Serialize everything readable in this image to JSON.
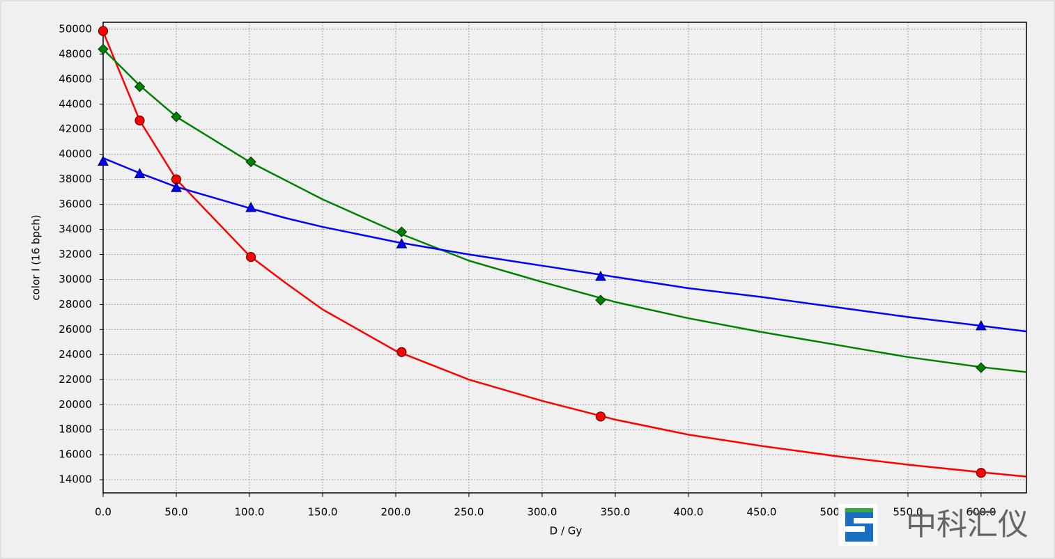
{
  "chart_data": {
    "type": "scatter",
    "x_label": "D / Gy",
    "y_label": "color I (16 bpch)",
    "xlim": [
      0,
      631
    ],
    "ylim": [
      12950,
      50550
    ],
    "xticks": [
      {
        "value": 0,
        "label": "0.0"
      },
      {
        "value": 50,
        "label": "50.0"
      },
      {
        "value": 100,
        "label": "100.0"
      },
      {
        "value": 150,
        "label": "150.0"
      },
      {
        "value": 200,
        "label": "200.0"
      },
      {
        "value": 250,
        "label": "250.0"
      },
      {
        "value": 300,
        "label": "300.0"
      },
      {
        "value": 350,
        "label": "350.0"
      },
      {
        "value": 400,
        "label": "400.0"
      },
      {
        "value": 450,
        "label": "450.0"
      },
      {
        "value": 500,
        "label": "500.0"
      },
      {
        "value": 550,
        "label": "550.0"
      },
      {
        "value": 600,
        "label": "600.0"
      }
    ],
    "yticks": [
      14000,
      16000,
      18000,
      20000,
      22000,
      24000,
      26000,
      28000,
      30000,
      32000,
      34000,
      36000,
      38000,
      40000,
      42000,
      44000,
      46000,
      48000,
      50000
    ],
    "grid": true,
    "x": [
      0,
      25,
      50,
      101,
      204,
      340,
      600
    ],
    "fit_x": [
      0,
      25,
      50,
      100,
      125,
      150,
      200,
      250,
      300,
      350,
      400,
      450,
      500,
      550,
      600,
      631
    ],
    "series": [
      {
        "color": "#ff0000",
        "marker": "circle",
        "values": [
          49850,
          42700,
          38000,
          31800,
          24200,
          19050,
          14550
        ],
        "fit_values": [
          49800,
          42700,
          38000,
          31900,
          29700,
          27600,
          24300,
          22000,
          20300,
          18800,
          17600,
          16700,
          15900,
          15200,
          14600,
          14250
        ]
      },
      {
        "color": "#008000",
        "marker": "diamond",
        "values": [
          48400,
          45400,
          43000,
          39400,
          33800,
          28350,
          22950
        ],
        "fit_values": [
          48400,
          45500,
          43000,
          39400,
          37900,
          36400,
          33800,
          31500,
          29800,
          28200,
          26900,
          25800,
          24800,
          23800,
          23000,
          22600
        ]
      },
      {
        "color": "#0000ff",
        "marker": "triangle",
        "values": [
          39400,
          38400,
          37300,
          35700,
          32800,
          30200,
          26250
        ],
        "fit_values": [
          39700,
          38500,
          37400,
          35700,
          34900,
          34200,
          33000,
          32000,
          31100,
          30200,
          29300,
          28600,
          27800,
          27000,
          26300,
          25850
        ]
      }
    ],
    "watermark": "中科汇仪"
  }
}
